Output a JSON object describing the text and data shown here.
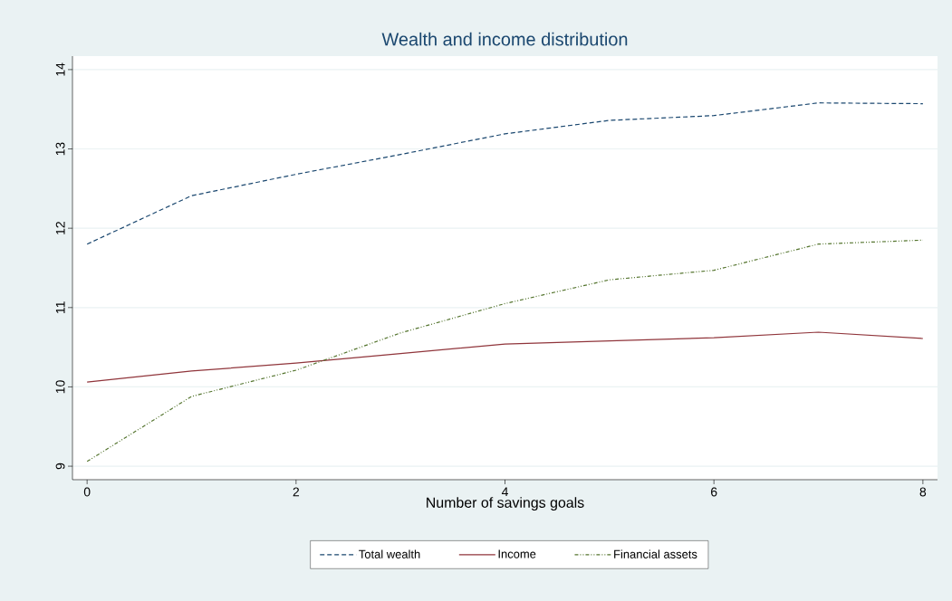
{
  "chart_data": {
    "type": "line",
    "title": "Wealth and income distribution",
    "xlabel": "Number of savings goals",
    "x": [
      0,
      1,
      2,
      3,
      4,
      5,
      6,
      7,
      8
    ],
    "series": [
      {
        "name": "Total wealth",
        "color": "#1a476f",
        "line_style": "dashed",
        "values": [
          11.8,
          12.41,
          12.68,
          12.93,
          13.19,
          13.36,
          13.42,
          13.58,
          13.57
        ]
      },
      {
        "name": "Income",
        "color": "#90353b",
        "line_style": "solid",
        "values": [
          10.06,
          10.2,
          10.3,
          10.42,
          10.54,
          10.58,
          10.62,
          10.69,
          10.61
        ]
      },
      {
        "name": "Financial assets",
        "color": "#55752f",
        "line_style": "dotted",
        "values": [
          9.06,
          9.88,
          10.21,
          10.68,
          11.05,
          11.35,
          11.47,
          11.8,
          11.85
        ]
      }
    ],
    "xlim": [
      -0.14,
      8.14
    ],
    "ylim": [
      8.83,
      14.17
    ],
    "xticks": [
      0,
      2,
      4,
      6,
      8
    ],
    "yticks": [
      9,
      10,
      11,
      12,
      13,
      14
    ],
    "grid": "y",
    "legend": "bottom",
    "marker": "none"
  }
}
